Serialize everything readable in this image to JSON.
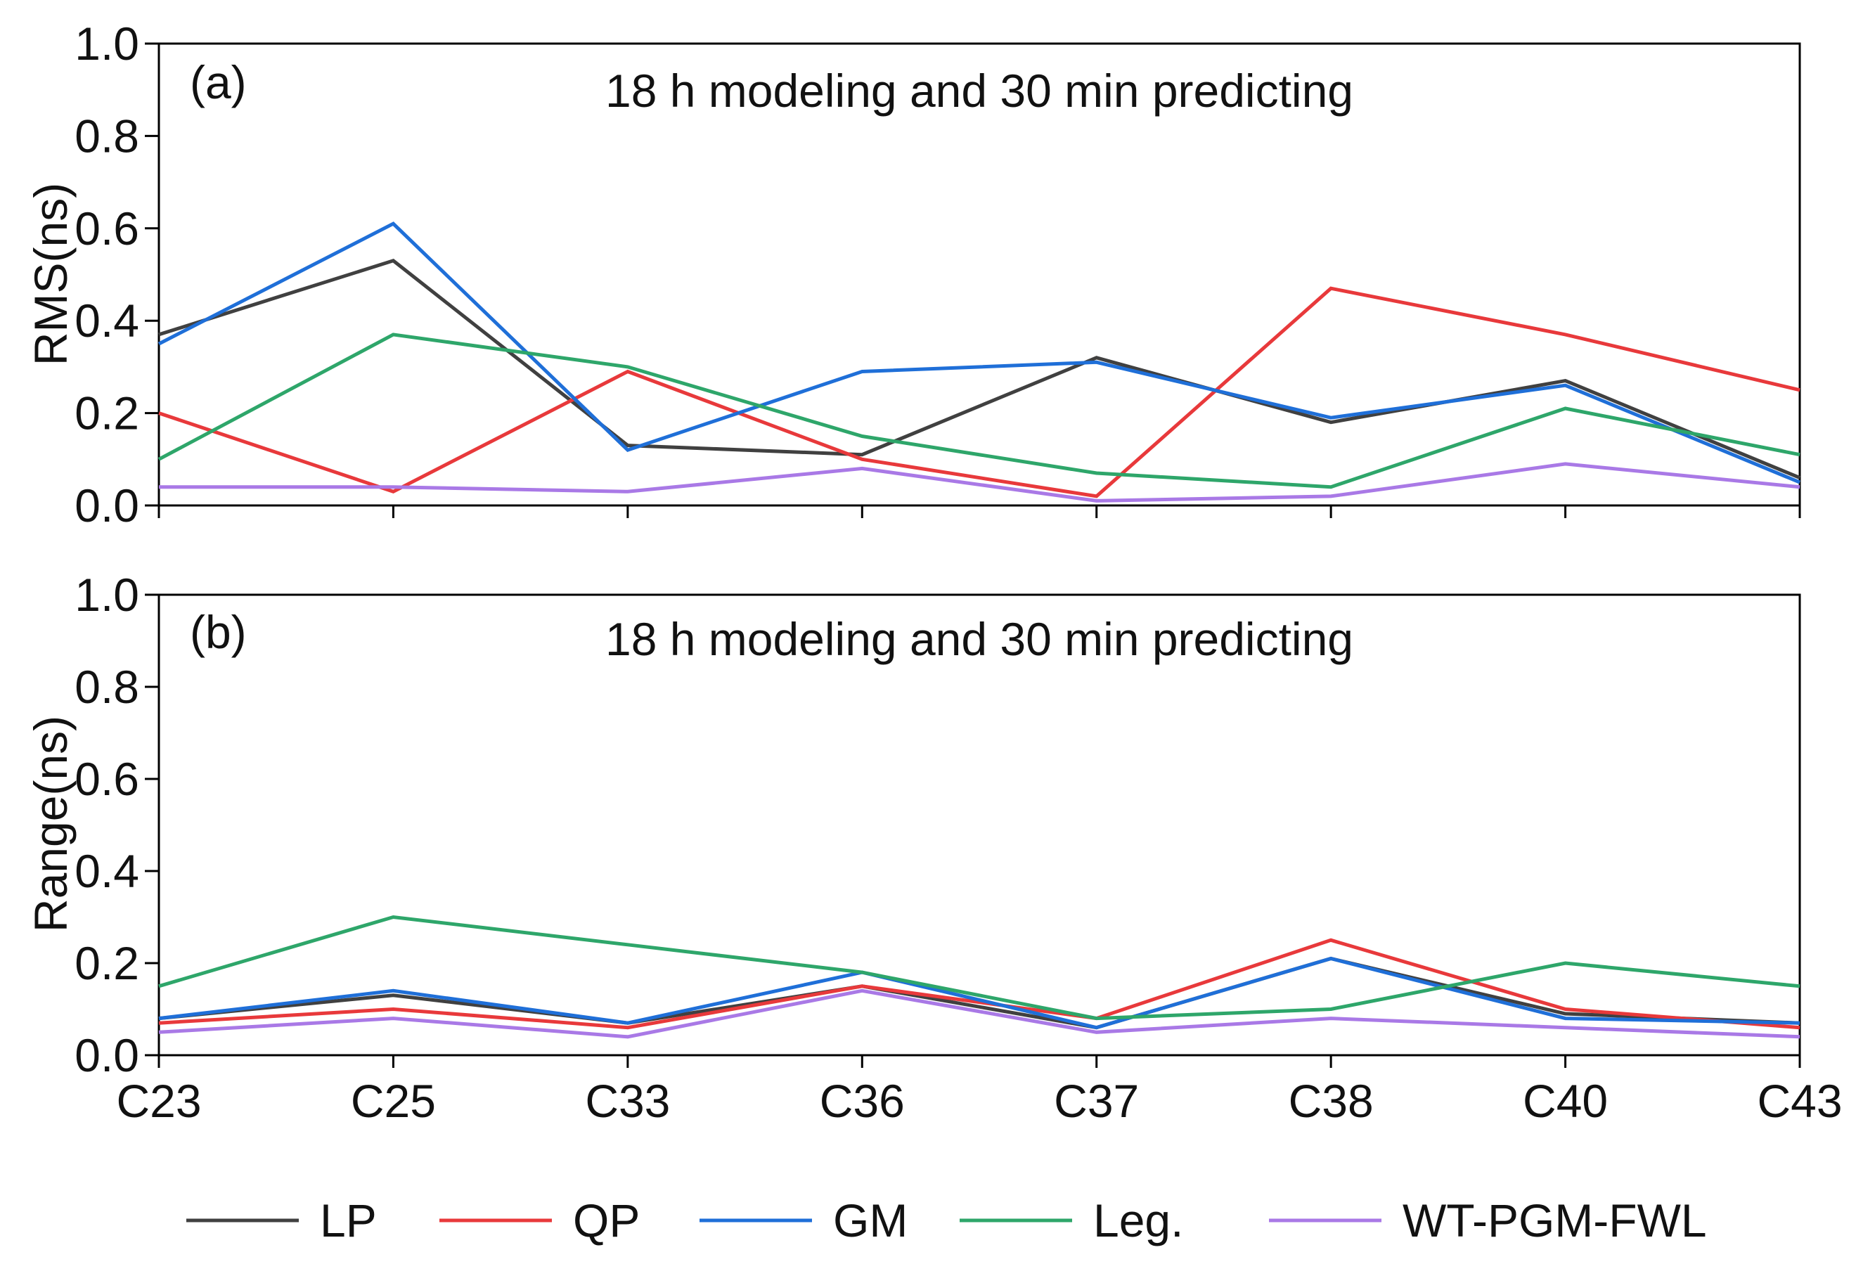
{
  "chart_data": [
    {
      "type": "line",
      "panel_label": "(a)",
      "title": "18 h modeling and 30 min predicting",
      "xlabel": "",
      "ylabel": "RMS(ns)",
      "ylim": [
        0,
        1.0
      ],
      "yticks": [
        "0.0",
        "0.2",
        "0.4",
        "0.6",
        "0.8",
        "1.0"
      ],
      "categories": [
        "C23",
        "C25",
        "C33",
        "C36",
        "C37",
        "C38",
        "C40",
        "C43"
      ],
      "series": [
        {
          "name": "LP",
          "color": "#404040",
          "values": [
            0.37,
            0.53,
            0.13,
            0.11,
            0.32,
            0.18,
            0.27,
            0.06
          ]
        },
        {
          "name": "QP",
          "color": "#e8393b",
          "values": [
            0.2,
            0.03,
            0.29,
            0.1,
            0.02,
            0.47,
            0.37,
            0.25
          ]
        },
        {
          "name": "GM",
          "color": "#1f6fd8",
          "values": [
            0.35,
            0.61,
            0.12,
            0.29,
            0.31,
            0.19,
            0.26,
            0.05
          ]
        },
        {
          "name": "Leg.",
          "color": "#2ea66a",
          "values": [
            0.1,
            0.37,
            0.3,
            0.15,
            0.07,
            0.04,
            0.21,
            0.11
          ]
        },
        {
          "name": "WT-PGM-FWL",
          "color": "#a979e6",
          "values": [
            0.04,
            0.04,
            0.03,
            0.08,
            0.01,
            0.02,
            0.09,
            0.04
          ]
        }
      ]
    },
    {
      "type": "line",
      "panel_label": "(b)",
      "title": "18 h modeling and 30 min predicting",
      "xlabel": "",
      "ylabel": "Range(ns)",
      "ylim": [
        0,
        1.0
      ],
      "yticks": [
        "0.0",
        "0.2",
        "0.4",
        "0.6",
        "0.8",
        "1.0"
      ],
      "categories": [
        "C23",
        "C25",
        "C33",
        "C36",
        "C37",
        "C38",
        "C40",
        "C43"
      ],
      "series": [
        {
          "name": "LP",
          "color": "#404040",
          "values": [
            0.08,
            0.13,
            0.07,
            0.15,
            0.06,
            0.21,
            0.09,
            0.07
          ]
        },
        {
          "name": "QP",
          "color": "#e8393b",
          "values": [
            0.07,
            0.1,
            0.06,
            0.15,
            0.08,
            0.25,
            0.1,
            0.06
          ]
        },
        {
          "name": "GM",
          "color": "#1f6fd8",
          "values": [
            0.08,
            0.14,
            0.07,
            0.18,
            0.06,
            0.21,
            0.08,
            0.07
          ]
        },
        {
          "name": "Leg.",
          "color": "#2ea66a",
          "values": [
            0.15,
            0.3,
            0.24,
            0.18,
            0.08,
            0.1,
            0.2,
            0.15
          ]
        },
        {
          "name": "WT-PGM-FWL",
          "color": "#a979e6",
          "values": [
            0.05,
            0.08,
            0.04,
            0.14,
            0.05,
            0.08,
            0.06,
            0.04
          ]
        }
      ]
    }
  ],
  "legend": {
    "placement": "bottom",
    "entries": [
      {
        "name": "LP",
        "color": "#404040"
      },
      {
        "name": "QP",
        "color": "#e8393b"
      },
      {
        "name": "GM",
        "color": "#1f6fd8"
      },
      {
        "name": "Leg.",
        "color": "#2ea66a"
      },
      {
        "name": "WT-PGM-FWL",
        "color": "#a979e6"
      }
    ]
  }
}
